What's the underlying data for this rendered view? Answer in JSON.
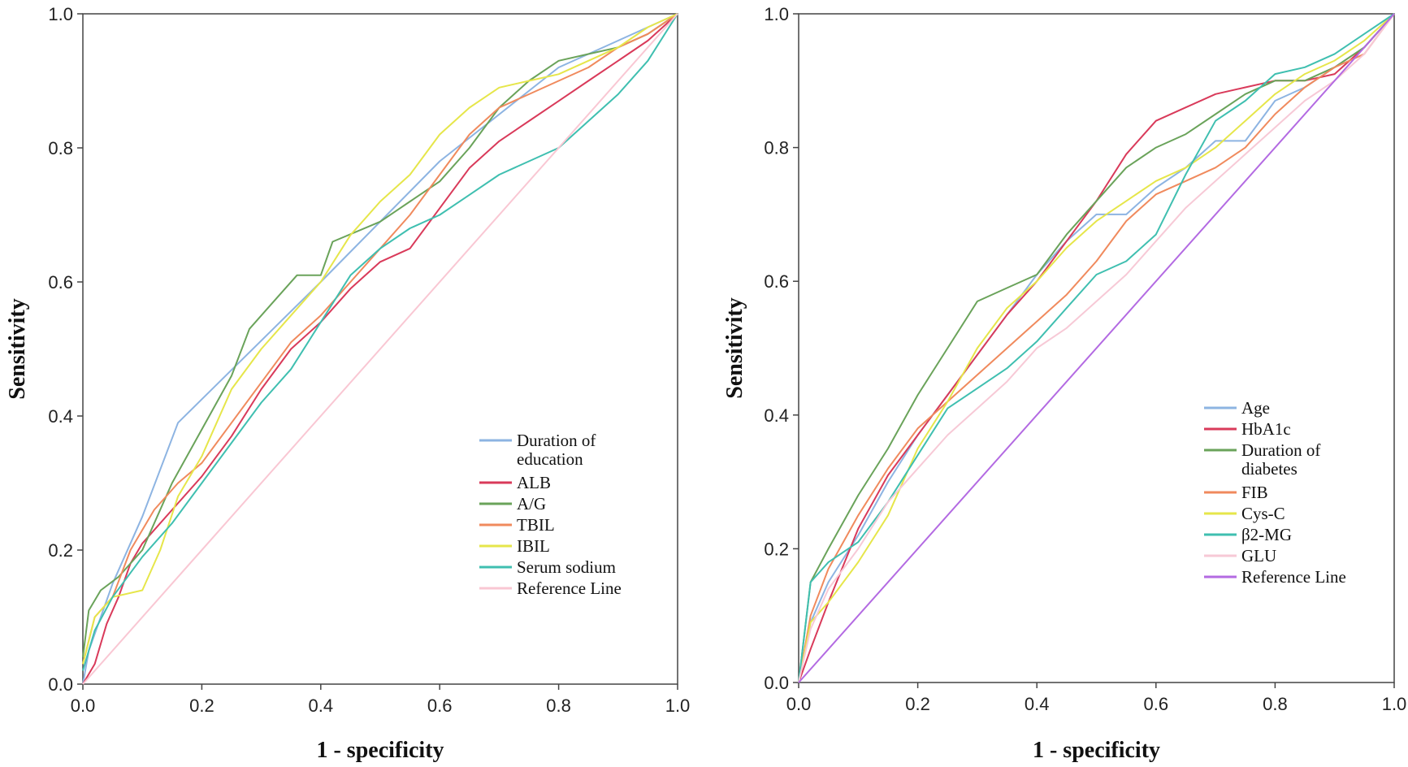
{
  "chart_data": [
    {
      "type": "line",
      "title": "",
      "xlabel": "1 - specificity",
      "ylabel": "Sensitivity",
      "xlim": [
        0,
        1
      ],
      "ylim": [
        0,
        1
      ],
      "xticks": [
        "0.0",
        "0.2",
        "0.4",
        "0.6",
        "0.8",
        "1.0"
      ],
      "yticks": [
        "0.0",
        "0.2",
        "0.4",
        "0.6",
        "0.8",
        "1.0"
      ],
      "legend_position": "bottom-right",
      "series": [
        {
          "name": "Duration of education",
          "legend_lines": [
            "Duration of",
            "education"
          ],
          "color": "#8db4e2",
          "x": [
            0,
            0.01,
            0.05,
            0.1,
            0.16,
            0.4,
            0.6,
            0.8,
            0.9,
            1.0
          ],
          "y": [
            0,
            0.05,
            0.15,
            0.25,
            0.39,
            0.6,
            0.78,
            0.92,
            0.96,
            1.0
          ]
        },
        {
          "name": "ALB",
          "legend_lines": [
            "ALB"
          ],
          "color": "#d93a5a",
          "x": [
            0,
            0.02,
            0.04,
            0.06,
            0.08,
            0.1,
            0.15,
            0.2,
            0.25,
            0.3,
            0.35,
            0.4,
            0.45,
            0.5,
            0.55,
            0.6,
            0.65,
            0.7,
            0.75,
            0.8,
            0.85,
            0.9,
            0.95,
            1.0
          ],
          "y": [
            0,
            0.03,
            0.09,
            0.13,
            0.18,
            0.21,
            0.26,
            0.31,
            0.37,
            0.44,
            0.5,
            0.54,
            0.59,
            0.63,
            0.65,
            0.71,
            0.77,
            0.81,
            0.84,
            0.87,
            0.9,
            0.93,
            0.96,
            1.0
          ]
        },
        {
          "name": "A/G",
          "legend_lines": [
            "A/G"
          ],
          "color": "#6aa35a",
          "x": [
            0,
            0.01,
            0.03,
            0.06,
            0.1,
            0.15,
            0.2,
            0.25,
            0.28,
            0.32,
            0.36,
            0.4,
            0.42,
            0.5,
            0.55,
            0.6,
            0.65,
            0.7,
            0.75,
            0.8,
            0.85,
            0.9,
            0.95,
            1.0
          ],
          "y": [
            0.04,
            0.11,
            0.14,
            0.16,
            0.2,
            0.3,
            0.38,
            0.46,
            0.53,
            0.57,
            0.61,
            0.61,
            0.66,
            0.69,
            0.72,
            0.75,
            0.8,
            0.86,
            0.9,
            0.93,
            0.94,
            0.95,
            0.97,
            1.0
          ]
        },
        {
          "name": "TBIL",
          "legend_lines": [
            "TBIL"
          ],
          "color": "#f08a5d",
          "x": [
            0,
            0.02,
            0.05,
            0.08,
            0.12,
            0.16,
            0.2,
            0.25,
            0.3,
            0.35,
            0.4,
            0.45,
            0.5,
            0.55,
            0.6,
            0.65,
            0.7,
            0.75,
            0.8,
            0.85,
            0.9,
            0.95,
            1.0
          ],
          "y": [
            0.03,
            0.1,
            0.13,
            0.2,
            0.26,
            0.3,
            0.33,
            0.39,
            0.45,
            0.51,
            0.55,
            0.6,
            0.65,
            0.7,
            0.76,
            0.82,
            0.86,
            0.88,
            0.9,
            0.92,
            0.95,
            0.97,
            1.0
          ]
        },
        {
          "name": "IBIL",
          "legend_lines": [
            "IBIL"
          ],
          "color": "#e6e64a",
          "x": [
            0,
            0.02,
            0.05,
            0.1,
            0.13,
            0.16,
            0.2,
            0.25,
            0.3,
            0.35,
            0.4,
            0.45,
            0.5,
            0.55,
            0.6,
            0.65,
            0.7,
            0.75,
            0.8,
            0.85,
            0.9,
            0.95,
            1.0
          ],
          "y": [
            0.03,
            0.1,
            0.13,
            0.14,
            0.2,
            0.28,
            0.34,
            0.44,
            0.5,
            0.55,
            0.6,
            0.67,
            0.72,
            0.76,
            0.82,
            0.86,
            0.89,
            0.9,
            0.91,
            0.93,
            0.95,
            0.98,
            1.0
          ]
        },
        {
          "name": "Serum sodium",
          "legend_lines": [
            "Serum sodium"
          ],
          "color": "#3fbfb0",
          "x": [
            0,
            0.02,
            0.05,
            0.1,
            0.15,
            0.2,
            0.25,
            0.3,
            0.35,
            0.4,
            0.45,
            0.5,
            0.55,
            0.6,
            0.65,
            0.7,
            0.75,
            0.8,
            0.85,
            0.9,
            0.95,
            1.0
          ],
          "y": [
            0.02,
            0.08,
            0.13,
            0.19,
            0.24,
            0.3,
            0.36,
            0.42,
            0.47,
            0.54,
            0.61,
            0.65,
            0.68,
            0.7,
            0.73,
            0.76,
            0.78,
            0.8,
            0.84,
            0.88,
            0.93,
            1.0
          ]
        },
        {
          "name": "Reference Line",
          "legend_lines": [
            "Reference Line"
          ],
          "color": "#f9c7d3",
          "x": [
            0,
            1
          ],
          "y": [
            0,
            1
          ]
        }
      ]
    },
    {
      "type": "line",
      "title": "",
      "xlabel": "1 - specificity",
      "ylabel": "Sensitivity",
      "xlim": [
        0,
        1
      ],
      "ylim": [
        0,
        1
      ],
      "xticks": [
        "0.0",
        "0.2",
        "0.4",
        "0.6",
        "0.8",
        "1.0"
      ],
      "yticks": [
        "0.0",
        "0.2",
        "0.4",
        "0.6",
        "0.8",
        "1.0"
      ],
      "legend_position": "bottom-right",
      "series": [
        {
          "name": "Age",
          "legend_lines": [
            "Age"
          ],
          "color": "#8db4e2",
          "x": [
            0,
            0.02,
            0.05,
            0.1,
            0.15,
            0.2,
            0.25,
            0.3,
            0.35,
            0.4,
            0.45,
            0.5,
            0.55,
            0.6,
            0.65,
            0.7,
            0.75,
            0.8,
            0.85,
            0.9,
            0.95,
            1.0
          ],
          "y": [
            0,
            0.09,
            0.15,
            0.22,
            0.3,
            0.37,
            0.43,
            0.49,
            0.55,
            0.61,
            0.66,
            0.7,
            0.7,
            0.74,
            0.77,
            0.81,
            0.81,
            0.87,
            0.89,
            0.92,
            0.95,
            1.0
          ]
        },
        {
          "name": "HbA1c",
          "legend_lines": [
            "HbA1c"
          ],
          "color": "#d93a5a",
          "x": [
            0,
            0.02,
            0.05,
            0.1,
            0.15,
            0.2,
            0.25,
            0.3,
            0.35,
            0.4,
            0.45,
            0.5,
            0.55,
            0.6,
            0.65,
            0.7,
            0.75,
            0.8,
            0.85,
            0.9,
            0.95,
            1.0
          ],
          "y": [
            0,
            0.05,
            0.12,
            0.23,
            0.31,
            0.37,
            0.43,
            0.49,
            0.55,
            0.6,
            0.66,
            0.72,
            0.79,
            0.84,
            0.86,
            0.88,
            0.89,
            0.9,
            0.9,
            0.91,
            0.95,
            1.0
          ]
        },
        {
          "name": "Duration of diabetes",
          "legend_lines": [
            "Duration of",
            "diabetes"
          ],
          "color": "#6aa35a",
          "x": [
            0,
            0.02,
            0.05,
            0.1,
            0.15,
            0.2,
            0.25,
            0.3,
            0.35,
            0.4,
            0.45,
            0.5,
            0.55,
            0.6,
            0.65,
            0.7,
            0.75,
            0.8,
            0.85,
            0.9,
            0.95,
            1.0
          ],
          "y": [
            0,
            0.15,
            0.2,
            0.28,
            0.35,
            0.43,
            0.5,
            0.57,
            0.59,
            0.61,
            0.67,
            0.72,
            0.77,
            0.8,
            0.82,
            0.85,
            0.88,
            0.9,
            0.9,
            0.92,
            0.95,
            1.0
          ]
        },
        {
          "name": "FIB",
          "legend_lines": [
            "FIB"
          ],
          "color": "#f08a5d",
          "x": [
            0,
            0.02,
            0.05,
            0.1,
            0.15,
            0.2,
            0.25,
            0.3,
            0.35,
            0.4,
            0.45,
            0.5,
            0.55,
            0.6,
            0.65,
            0.7,
            0.75,
            0.8,
            0.85,
            0.9,
            0.95,
            1.0
          ],
          "y": [
            0,
            0.1,
            0.17,
            0.25,
            0.32,
            0.38,
            0.42,
            0.46,
            0.5,
            0.54,
            0.58,
            0.63,
            0.69,
            0.73,
            0.75,
            0.77,
            0.8,
            0.85,
            0.89,
            0.92,
            0.94,
            1.0
          ]
        },
        {
          "name": "Cys-C",
          "legend_lines": [
            "Cys-C"
          ],
          "color": "#e6e64a",
          "x": [
            0,
            0.02,
            0.05,
            0.1,
            0.15,
            0.2,
            0.25,
            0.3,
            0.35,
            0.4,
            0.45,
            0.5,
            0.55,
            0.6,
            0.65,
            0.7,
            0.75,
            0.8,
            0.85,
            0.9,
            0.95,
            1.0
          ],
          "y": [
            0,
            0.09,
            0.12,
            0.18,
            0.25,
            0.35,
            0.42,
            0.5,
            0.56,
            0.6,
            0.65,
            0.69,
            0.72,
            0.75,
            0.77,
            0.8,
            0.84,
            0.88,
            0.91,
            0.93,
            0.96,
            1.0
          ]
        },
        {
          "name": "β2-MG",
          "legend_lines": [
            "β2-MG"
          ],
          "color": "#3fbfb0",
          "x": [
            0,
            0.02,
            0.05,
            0.1,
            0.15,
            0.2,
            0.25,
            0.3,
            0.35,
            0.4,
            0.45,
            0.5,
            0.55,
            0.6,
            0.65,
            0.7,
            0.75,
            0.8,
            0.85,
            0.9,
            0.95,
            1.0
          ],
          "y": [
            0,
            0.15,
            0.18,
            0.21,
            0.27,
            0.34,
            0.41,
            0.44,
            0.47,
            0.51,
            0.56,
            0.61,
            0.63,
            0.67,
            0.76,
            0.84,
            0.87,
            0.91,
            0.92,
            0.94,
            0.97,
            1.0
          ]
        },
        {
          "name": "GLU",
          "legend_lines": [
            "GLU"
          ],
          "color": "#f7c9d6",
          "x": [
            0,
            0.02,
            0.05,
            0.1,
            0.15,
            0.2,
            0.25,
            0.3,
            0.35,
            0.4,
            0.45,
            0.5,
            0.55,
            0.6,
            0.65,
            0.7,
            0.75,
            0.8,
            0.85,
            0.9,
            0.95,
            1.0
          ],
          "y": [
            0,
            0.08,
            0.14,
            0.2,
            0.27,
            0.32,
            0.37,
            0.41,
            0.45,
            0.5,
            0.53,
            0.57,
            0.61,
            0.66,
            0.71,
            0.75,
            0.79,
            0.83,
            0.87,
            0.9,
            0.94,
            1.0
          ]
        },
        {
          "name": "Reference Line",
          "legend_lines": [
            "Reference Line"
          ],
          "color": "#b36ae2",
          "x": [
            0,
            1
          ],
          "y": [
            0,
            1
          ]
        }
      ]
    }
  ]
}
